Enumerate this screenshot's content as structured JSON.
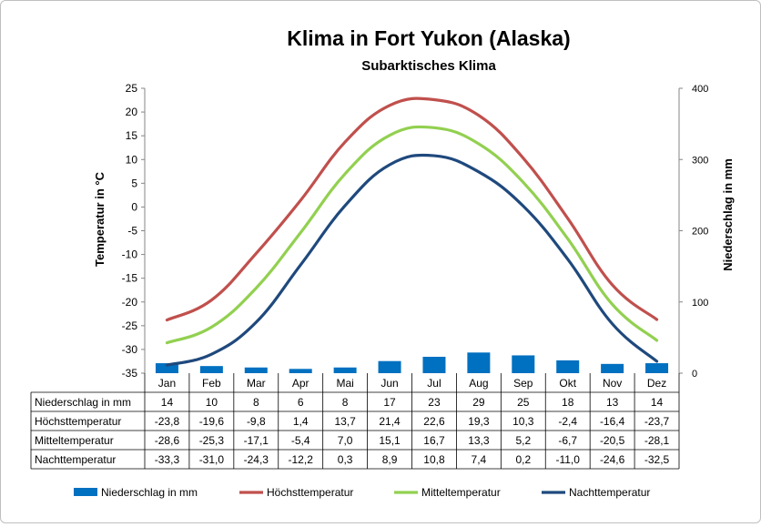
{
  "chart_data": {
    "type": "bar",
    "title": "Klima in Fort Yukon (Alaska)",
    "subtitle": "Subarktisches Klima",
    "ylabel_left": "Temperatur in °C",
    "ylabel_right": "Niederschlag in mm",
    "ylim_left": [
      -35,
      25
    ],
    "yticks_left": [
      -35,
      -30,
      -25,
      -20,
      -15,
      -10,
      -5,
      0,
      5,
      10,
      15,
      20,
      25
    ],
    "ylim_right": [
      0,
      400
    ],
    "yticks_right": [
      0,
      100,
      200,
      300,
      400
    ],
    "grid": false,
    "legend_position": "bottom",
    "categories": [
      "Jan",
      "Feb",
      "Mar",
      "Apr",
      "Mai",
      "Jun",
      "Jul",
      "Aug",
      "Sep",
      "Okt",
      "Nov",
      "Dez"
    ],
    "series": [
      {
        "name": "Niederschlag in mm",
        "kind": "bar",
        "axis": "right",
        "color": "#0070C0",
        "values": [
          14,
          10,
          8,
          6,
          8,
          17,
          23,
          29,
          25,
          18,
          13,
          14
        ],
        "labels": [
          "14",
          "10",
          "8",
          "6",
          "8",
          "17",
          "23",
          "29",
          "25",
          "18",
          "13",
          "14"
        ]
      },
      {
        "name": "Höchsttemperatur",
        "kind": "line",
        "axis": "left",
        "color": "#C0504D",
        "values": [
          -23.8,
          -19.6,
          -9.8,
          1.4,
          13.7,
          21.4,
          22.6,
          19.3,
          10.3,
          -2.4,
          -16.4,
          -23.7
        ],
        "labels": [
          "-23,8",
          "-19,6",
          "-9,8",
          "1,4",
          "13,7",
          "21,4",
          "22,6",
          "19,3",
          "10,3",
          "-2,4",
          "-16,4",
          "-23,7"
        ]
      },
      {
        "name": "Mitteltemperatur",
        "kind": "line",
        "axis": "left",
        "color": "#92D050",
        "values": [
          -28.6,
          -25.3,
          -17.1,
          -5.4,
          7.0,
          15.1,
          16.7,
          13.3,
          5.2,
          -6.7,
          -20.5,
          -28.1
        ],
        "labels": [
          "-28,6",
          "-25,3",
          "-17,1",
          "-5,4",
          "7,0",
          "15,1",
          "16,7",
          "13,3",
          "5,2",
          "-6,7",
          "-20,5",
          "-28,1"
        ]
      },
      {
        "name": "Nachttemperatur",
        "kind": "line",
        "axis": "left",
        "color": "#1F497D",
        "values": [
          -33.3,
          -31.0,
          -24.3,
          -12.2,
          0.3,
          8.9,
          10.8,
          7.4,
          0.2,
          -11.0,
          -24.6,
          -32.5
        ],
        "labels": [
          "-33,3",
          "-31,0",
          "-24,3",
          "-12,2",
          "0,3",
          "8,9",
          "10,8",
          "7,4",
          "0,2",
          "-11,0",
          "-24,6",
          "-32,5"
        ]
      }
    ]
  }
}
